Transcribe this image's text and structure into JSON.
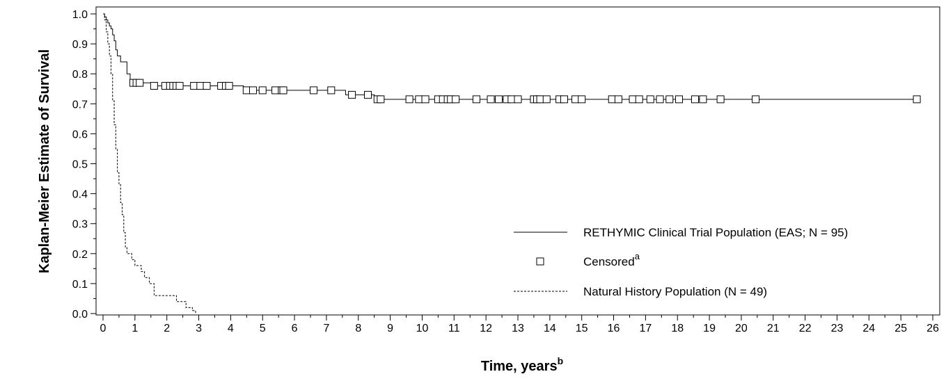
{
  "chart_data": {
    "type": "line",
    "xlabel": "Time, years",
    "xlabel_sup": "b",
    "ylabel": "Kaplan-Meier Estimate of Survival",
    "xlim": [
      0,
      26
    ],
    "ylim": [
      0,
      1
    ],
    "x_ticks": [
      "0",
      "1",
      "2",
      "3",
      "4",
      "5",
      "6",
      "7",
      "8",
      "9",
      "10",
      "11",
      "12",
      "13",
      "14",
      "15",
      "16",
      "17",
      "18",
      "19",
      "20",
      "21",
      "22",
      "23",
      "24",
      "25",
      "26"
    ],
    "y_ticks": [
      "0.0",
      "0.1",
      "0.2",
      "0.3",
      "0.4",
      "0.5",
      "0.6",
      "0.7",
      "0.8",
      "0.9",
      "1.0"
    ],
    "grid": false,
    "legend_position": "bottom-right",
    "legend": {
      "series1": "RETHYMIC Clinical Trial Population (EAS; N = 95)",
      "censored": "Censored",
      "censored_sup": "a",
      "series2": "Natural History Population (N = 49)"
    },
    "series": [
      {
        "name": "RETHYMIC Clinical Trial Population (EAS; N = 95)",
        "style": "solid",
        "step_x": [
          0,
          0.05,
          0.1,
          0.15,
          0.2,
          0.25,
          0.3,
          0.35,
          0.4,
          0.45,
          0.55,
          0.75,
          0.85,
          1.5,
          4.4,
          7.6,
          8.5,
          25.5
        ],
        "step_y": [
          1.0,
          0.99,
          0.98,
          0.97,
          0.96,
          0.95,
          0.93,
          0.91,
          0.88,
          0.86,
          0.84,
          0.8,
          0.77,
          0.76,
          0.745,
          0.73,
          0.715,
          0.715
        ],
        "censored": [
          {
            "x": 0.95,
            "y": 0.77
          },
          {
            "x": 1.05,
            "y": 0.77
          },
          {
            "x": 1.15,
            "y": 0.77
          },
          {
            "x": 1.6,
            "y": 0.76
          },
          {
            "x": 1.95,
            "y": 0.76
          },
          {
            "x": 2.1,
            "y": 0.76
          },
          {
            "x": 2.2,
            "y": 0.76
          },
          {
            "x": 2.3,
            "y": 0.76
          },
          {
            "x": 2.4,
            "y": 0.76
          },
          {
            "x": 2.85,
            "y": 0.76
          },
          {
            "x": 3.05,
            "y": 0.76
          },
          {
            "x": 3.25,
            "y": 0.76
          },
          {
            "x": 3.7,
            "y": 0.76
          },
          {
            "x": 3.85,
            "y": 0.76
          },
          {
            "x": 3.95,
            "y": 0.76
          },
          {
            "x": 4.5,
            "y": 0.745
          },
          {
            "x": 4.7,
            "y": 0.745
          },
          {
            "x": 5.0,
            "y": 0.745
          },
          {
            "x": 5.4,
            "y": 0.745
          },
          {
            "x": 5.6,
            "y": 0.745
          },
          {
            "x": 5.65,
            "y": 0.745
          },
          {
            "x": 6.6,
            "y": 0.745
          },
          {
            "x": 7.15,
            "y": 0.745
          },
          {
            "x": 7.8,
            "y": 0.73
          },
          {
            "x": 8.3,
            "y": 0.73
          },
          {
            "x": 8.6,
            "y": 0.715
          },
          {
            "x": 8.7,
            "y": 0.715
          },
          {
            "x": 9.6,
            "y": 0.715
          },
          {
            "x": 9.9,
            "y": 0.715
          },
          {
            "x": 10.1,
            "y": 0.715
          },
          {
            "x": 10.5,
            "y": 0.715
          },
          {
            "x": 10.65,
            "y": 0.715
          },
          {
            "x": 10.8,
            "y": 0.715
          },
          {
            "x": 10.9,
            "y": 0.715
          },
          {
            "x": 11.05,
            "y": 0.715
          },
          {
            "x": 11.7,
            "y": 0.715
          },
          {
            "x": 12.15,
            "y": 0.715
          },
          {
            "x": 12.4,
            "y": 0.715
          },
          {
            "x": 12.65,
            "y": 0.715
          },
          {
            "x": 12.8,
            "y": 0.715
          },
          {
            "x": 13.0,
            "y": 0.715
          },
          {
            "x": 13.5,
            "y": 0.715
          },
          {
            "x": 13.6,
            "y": 0.715
          },
          {
            "x": 13.7,
            "y": 0.715
          },
          {
            "x": 13.9,
            "y": 0.715
          },
          {
            "x": 14.3,
            "y": 0.715
          },
          {
            "x": 14.45,
            "y": 0.715
          },
          {
            "x": 14.8,
            "y": 0.715
          },
          {
            "x": 15.0,
            "y": 0.715
          },
          {
            "x": 15.95,
            "y": 0.715
          },
          {
            "x": 16.15,
            "y": 0.715
          },
          {
            "x": 16.6,
            "y": 0.715
          },
          {
            "x": 16.8,
            "y": 0.715
          },
          {
            "x": 17.15,
            "y": 0.715
          },
          {
            "x": 17.45,
            "y": 0.715
          },
          {
            "x": 17.75,
            "y": 0.715
          },
          {
            "x": 18.05,
            "y": 0.715
          },
          {
            "x": 18.55,
            "y": 0.715
          },
          {
            "x": 18.8,
            "y": 0.715
          },
          {
            "x": 19.35,
            "y": 0.715
          },
          {
            "x": 20.45,
            "y": 0.715
          },
          {
            "x": 25.5,
            "y": 0.715
          }
        ]
      },
      {
        "name": "Natural History Population (N = 49)",
        "style": "dashed",
        "step_x": [
          0,
          0.05,
          0.1,
          0.15,
          0.2,
          0.25,
          0.3,
          0.35,
          0.4,
          0.45,
          0.5,
          0.55,
          0.6,
          0.65,
          0.7,
          0.75,
          0.8,
          0.9,
          1.0,
          1.2,
          1.3,
          1.45,
          1.6,
          2.3,
          2.6,
          2.8,
          2.9
        ],
        "step_y": [
          1.0,
          0.98,
          0.94,
          0.9,
          0.86,
          0.8,
          0.71,
          0.63,
          0.55,
          0.47,
          0.43,
          0.37,
          0.33,
          0.27,
          0.22,
          0.2,
          0.2,
          0.18,
          0.16,
          0.14,
          0.12,
          0.1,
          0.06,
          0.04,
          0.02,
          0.01,
          0.0
        ]
      }
    ]
  }
}
